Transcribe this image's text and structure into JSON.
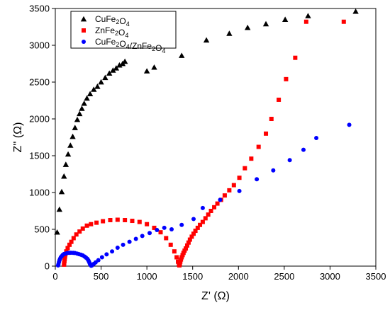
{
  "chart_data": {
    "type": "scatter",
    "title": "",
    "xlabel": "Z' (Ω)",
    "ylabel": "Z'' (Ω)",
    "xlim": [
      0,
      3500
    ],
    "ylim": [
      0,
      3500
    ],
    "xticks": [
      0,
      500,
      1000,
      1500,
      2000,
      2500,
      3000,
      3500
    ],
    "yticks": [
      0,
      500,
      1000,
      1500,
      2000,
      2500,
      3000,
      3500
    ],
    "legend_position": "top-left",
    "grid": false,
    "series": [
      {
        "name": "CuFe2O4",
        "marker": "triangle",
        "color": "#000000",
        "x": [
          20,
          45,
          70,
          95,
          115,
          140,
          165,
          190,
          215,
          240,
          265,
          290,
          315,
          345,
          380,
          420,
          460,
          500,
          545,
          590,
          630,
          665,
          700,
          735,
          760,
          1000,
          1080,
          1380,
          1650,
          1900,
          2100,
          2300,
          2510,
          2760,
          3280
        ],
        "y": [
          460,
          770,
          1010,
          1220,
          1380,
          1520,
          1640,
          1760,
          1880,
          1990,
          2070,
          2140,
          2210,
          2280,
          2340,
          2400,
          2440,
          2500,
          2560,
          2620,
          2660,
          2690,
          2730,
          2750,
          2780,
          2650,
          2700,
          2860,
          3070,
          3160,
          3240,
          3290,
          3350,
          3400,
          3460
        ]
      },
      {
        "name": "ZnFe2O4",
        "marker": "square",
        "color": "#ff0000",
        "x": [
          95,
          97,
          100,
          103,
          106,
          110,
          120,
          135,
          155,
          175,
          200,
          230,
          265,
          300,
          345,
          390,
          450,
          520,
          600,
          680,
          760,
          840,
          920,
          1000,
          1080,
          1150,
          1210,
          1260,
          1300,
          1325,
          1340,
          1350,
          1355,
          1360,
          1365,
          1372,
          1380,
          1390,
          1400,
          1412,
          1425,
          1440,
          1455,
          1470,
          1490,
          1510,
          1530,
          1555,
          1580,
          1610,
          1640,
          1670,
          1700,
          1735,
          1770,
          1810,
          1850,
          1900,
          1950,
          2010,
          2070,
          2140,
          2220,
          2300,
          2360,
          2440,
          2520,
          2620,
          2740,
          3150
        ],
        "y": [
          20,
          40,
          70,
          100,
          130,
          160,
          200,
          245,
          290,
          330,
          380,
          430,
          470,
          510,
          550,
          570,
          590,
          610,
          625,
          630,
          625,
          615,
          600,
          570,
          520,
          460,
          380,
          290,
          200,
          120,
          60,
          20,
          10,
          30,
          60,
          90,
          120,
          150,
          180,
          210,
          240,
          280,
          320,
          360,
          400,
          440,
          480,
          520,
          560,
          600,
          650,
          700,
          750,
          800,
          850,
          900,
          960,
          1030,
          1100,
          1200,
          1330,
          1460,
          1620,
          1800,
          2000,
          2260,
          2540,
          2830,
          3320,
          3320
        ]
      },
      {
        "name": "CuFe2O4/ZnFe2O4",
        "marker": "circle",
        "color": "#0000ff",
        "x": [
          30,
          35,
          40,
          46,
          52,
          60,
          70,
          80,
          95,
          110,
          130,
          150,
          170,
          195,
          215,
          240,
          260,
          280,
          300,
          320,
          335,
          350,
          360,
          368,
          375,
          380,
          385,
          392,
          400,
          420,
          440,
          470,
          510,
          560,
          620,
          680,
          740,
          810,
          880,
          950,
          1030,
          1110,
          1190,
          1270,
          1380,
          1510,
          1610,
          1800,
          2010,
          2200,
          2380,
          2560,
          2710,
          2850,
          3210
        ],
        "y": [
          10,
          30,
          55,
          80,
          100,
          120,
          135,
          150,
          165,
          170,
          178,
          180,
          182,
          180,
          178,
          170,
          162,
          155,
          145,
          130,
          115,
          100,
          80,
          60,
          40,
          25,
          15,
          5,
          10,
          30,
          50,
          80,
          120,
          160,
          200,
          250,
          290,
          330,
          370,
          410,
          450,
          490,
          520,
          500,
          560,
          640,
          790,
          900,
          1020,
          1180,
          1300,
          1440,
          1580,
          1740,
          1920
        ]
      }
    ]
  }
}
